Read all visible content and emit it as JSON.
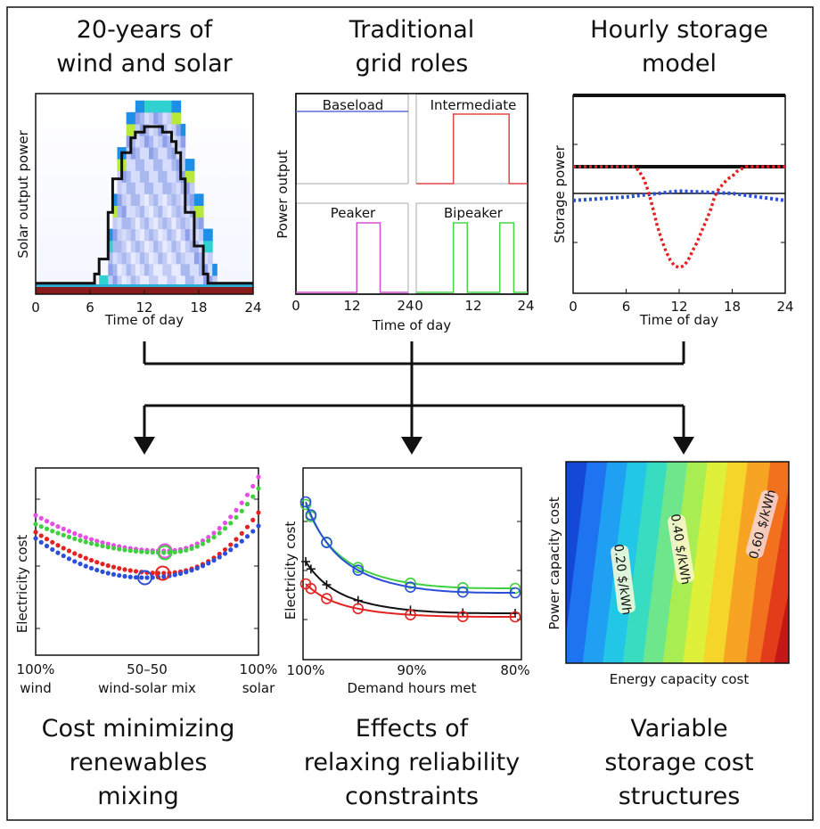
{
  "titles": {
    "p1": [
      "20-years of",
      "wind and solar"
    ],
    "p2": [
      "Traditional",
      "grid roles"
    ],
    "p3": [
      "Hourly storage",
      "model"
    ],
    "p4": [
      "Cost minimizing",
      "renewables",
      "mixing"
    ],
    "p5": [
      "Effects of",
      "relaxing reliability",
      "constraints"
    ],
    "p6": [
      "Variable",
      "storage cost",
      "structures"
    ]
  },
  "colors": {
    "blue": "#2b4fd8",
    "red": "#e32222",
    "green": "#3fcf3f",
    "magenta": "#e84de8",
    "black": "#111111",
    "baseload": "#5b6fd6",
    "intermediate": "#e04646",
    "peaker": "#d64fd6",
    "bipeaker": "#46d646"
  },
  "chart_data": [
    {
      "id": "solar",
      "type": "heatmap",
      "ylabel": "Solar output power",
      "xlabel": "Time of day",
      "xticks": [
        "0",
        "6",
        "12",
        "18",
        "24"
      ],
      "xlim": [
        0,
        24
      ],
      "median_profile": [
        [
          0,
          0.02
        ],
        [
          6.5,
          0.02
        ],
        [
          6.5,
          0.07
        ],
        [
          7,
          0.07
        ],
        [
          7,
          0.15
        ],
        [
          8,
          0.15
        ],
        [
          8,
          0.4
        ],
        [
          8.5,
          0.4
        ],
        [
          8.5,
          0.58
        ],
        [
          9.5,
          0.58
        ],
        [
          9.5,
          0.72
        ],
        [
          10.5,
          0.72
        ],
        [
          10.5,
          0.8
        ],
        [
          11,
          0.8
        ],
        [
          11,
          0.83
        ],
        [
          12,
          0.83
        ],
        [
          12,
          0.86
        ],
        [
          14,
          0.86
        ],
        [
          14,
          0.83
        ],
        [
          15,
          0.83
        ],
        [
          15,
          0.78
        ],
        [
          15.5,
          0.78
        ],
        [
          15.5,
          0.72
        ],
        [
          16,
          0.72
        ],
        [
          16,
          0.58
        ],
        [
          16.5,
          0.58
        ],
        [
          16.5,
          0.4
        ],
        [
          17.5,
          0.4
        ],
        [
          17.5,
          0.22
        ],
        [
          18.5,
          0.22
        ],
        [
          18.5,
          0.07
        ],
        [
          19,
          0.07
        ],
        [
          19,
          0.02
        ],
        [
          24,
          0.02
        ]
      ]
    },
    {
      "id": "grid_roles",
      "type": "line",
      "ylabel": "Power output",
      "xlabel": "Time of day",
      "xticks": [
        "0",
        "12",
        "24",
        "0",
        "12",
        "24"
      ],
      "subplots": [
        {
          "name": "Baseload",
          "x": [
            0,
            24
          ],
          "y": [
            1,
            1
          ]
        },
        {
          "name": "Intermediate",
          "x": [
            0,
            8,
            8,
            20,
            20,
            24
          ],
          "y": [
            0,
            0,
            1,
            1,
            0,
            0
          ]
        },
        {
          "name": "Peaker",
          "x": [
            0,
            13,
            13,
            18,
            18,
            24
          ],
          "y": [
            0,
            0,
            1,
            1,
            0,
            0
          ]
        },
        {
          "name": "Bipeaker",
          "x": [
            0,
            8,
            8,
            11,
            11,
            18,
            18,
            21,
            21,
            24
          ],
          "y": [
            0,
            0,
            1,
            1,
            0,
            0,
            1,
            1,
            0,
            0
          ]
        }
      ]
    },
    {
      "id": "storage",
      "type": "line",
      "ylabel": "Storage power",
      "xlabel": "Time of day",
      "xticks": [
        "0",
        "6",
        "12",
        "18",
        "24"
      ],
      "xlim": [
        0,
        24
      ],
      "series": [
        {
          "style": "dotted",
          "color": "red",
          "x": [
            0,
            7,
            7.5,
            8,
            8.5,
            9,
            9.5,
            10,
            10.5,
            11,
            11.5,
            12,
            12.5,
            13,
            13.5,
            14,
            14.5,
            15,
            15.5,
            16,
            16.5,
            17,
            17.5,
            18,
            18.5,
            19,
            19.5,
            20,
            24
          ],
          "y": [
            0.55,
            0.55,
            0.45,
            0.3,
            0.05,
            -0.2,
            -0.45,
            -0.65,
            -0.82,
            -0.95,
            -1.03,
            -1.05,
            -1.03,
            -0.95,
            -0.82,
            -0.7,
            -0.55,
            -0.4,
            -0.25,
            -0.05,
            0.1,
            0.2,
            0.3,
            0.35,
            0.45,
            0.5,
            0.55,
            0.55,
            0.55
          ]
        },
        {
          "style": "dotted",
          "color": "blue",
          "x": [
            0,
            6,
            12,
            18,
            24
          ],
          "y": [
            -0.1,
            -0.05,
            0.05,
            0,
            -0.1
          ]
        },
        {
          "style": "solid",
          "color": "black",
          "x": [
            0,
            24
          ],
          "y": [
            0,
            0
          ]
        },
        {
          "style": "solid",
          "color": "black",
          "x": [
            0,
            24
          ],
          "y": [
            0.55,
            0.55
          ]
        }
      ]
    },
    {
      "id": "mixing",
      "type": "scatter",
      "ylabel": "Electricity cost",
      "xticks": [
        "100%",
        "50–50",
        "100%"
      ],
      "xsub": [
        "wind",
        "wind-solar mix",
        "solar"
      ],
      "xlim": [
        0,
        1
      ],
      "series": [
        {
          "color": "magenta",
          "min_x": 0.58
        },
        {
          "color": "green",
          "min_x": 0.58
        },
        {
          "color": "red",
          "min_x": 0.57
        },
        {
          "color": "blue",
          "min_x": 0.49
        }
      ]
    },
    {
      "id": "reliability",
      "type": "line",
      "ylabel": "Electricity cost",
      "xlabel": "Demand hours met",
      "xticks": [
        "100%",
        "90%",
        "80%"
      ],
      "xlim": [
        100,
        80
      ],
      "markers_x": [
        100,
        99.5,
        98,
        95,
        90,
        85,
        80
      ],
      "series": [
        {
          "color": "green",
          "marker": "circle"
        },
        {
          "color": "blue",
          "marker": "circle"
        },
        {
          "color": "black",
          "marker": "plus"
        },
        {
          "color": "red",
          "marker": "circle"
        }
      ]
    },
    {
      "id": "storage_cost",
      "type": "heatmap",
      "ylabel": "Power capacity cost",
      "xlabel": "Energy capacity cost",
      "contour_labels": [
        "0.20 $/kWh",
        "0.40 $/kWh",
        "0.60 $/kWh"
      ]
    }
  ]
}
